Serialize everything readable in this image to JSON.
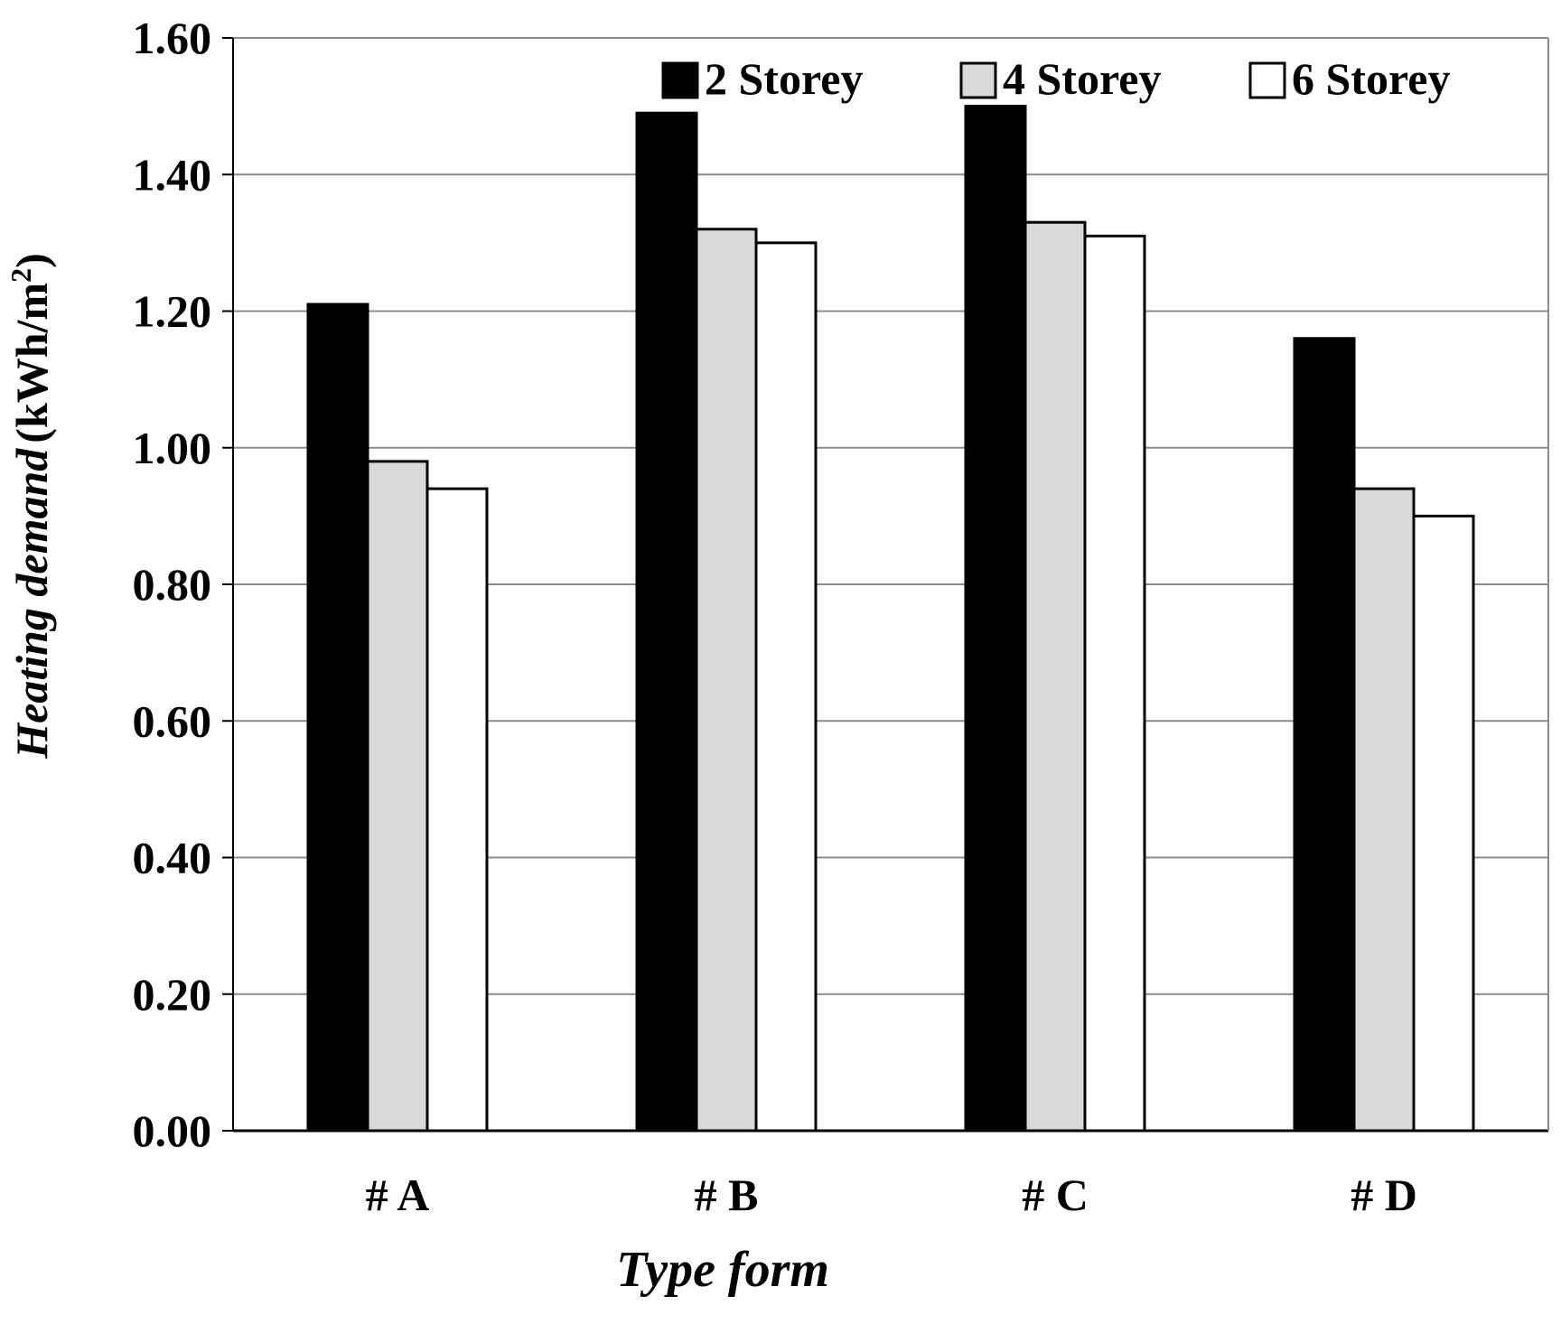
{
  "chart_data": {
    "type": "bar",
    "title": "",
    "xlabel": "Type form",
    "ylabel": {
      "italic_part": "Heating demand",
      "unit_part": "(kWh/m",
      "unit_superscript": "2",
      "unit_close": ")"
    },
    "categories": [
      "# A",
      "# B",
      "# C",
      "# D"
    ],
    "series": [
      {
        "name": "2 Storey",
        "values": [
          1.21,
          1.49,
          1.5,
          1.16
        ],
        "color": "#000000"
      },
      {
        "name": "4 Storey",
        "values": [
          0.98,
          1.32,
          1.33,
          0.94
        ],
        "color": "#d9d9d9"
      },
      {
        "name": "6 Storey",
        "values": [
          0.94,
          1.3,
          1.31,
          0.9
        ],
        "color": "#ffffff"
      }
    ],
    "ylim": [
      0,
      1.6
    ],
    "yticks": [
      "0.00",
      "0.20",
      "0.40",
      "0.60",
      "0.80",
      "1.00",
      "1.20",
      "1.40",
      "1.60"
    ],
    "grid": true,
    "legend_position": "top-right",
    "xlabel_color": "#1a1a1a"
  }
}
